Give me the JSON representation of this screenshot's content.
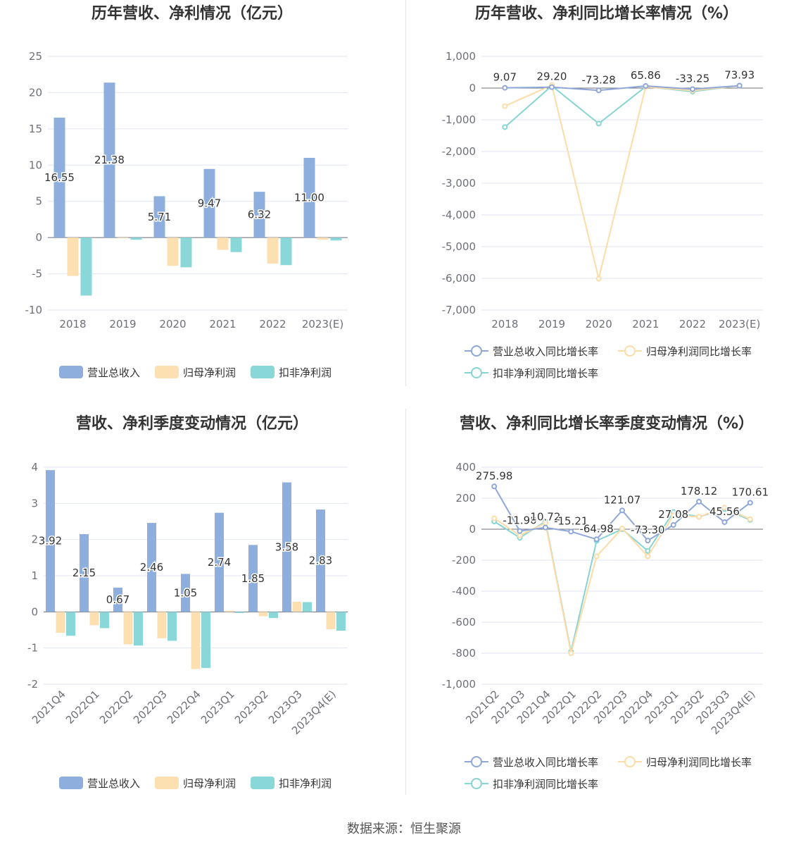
{
  "source": "数据来源：恒生聚源",
  "colors": {
    "revenue": "#8eafdd",
    "net": "#fde0b2",
    "deducted": "#8ad7d8",
    "revenue_line": "#8ea7d8",
    "net_line": "#fddca7",
    "deducted_line": "#85d5d3"
  },
  "legend": {
    "bars": [
      "营业总收入",
      "归母净利润",
      "扣非净利润"
    ],
    "lines": [
      "营业总收入同比增长率",
      "归母净利润同比增长率",
      "扣非净利润同比增长率"
    ]
  },
  "chart_data": [
    {
      "type": "bar",
      "title": "历年营收、净利情况（亿元）",
      "categories": [
        "2018",
        "2019",
        "2020",
        "2021",
        "2022",
        "2023(E)"
      ],
      "series": [
        {
          "name": "营业总收入",
          "values": [
            16.55,
            21.38,
            5.71,
            9.47,
            6.32,
            11.0
          ],
          "labels": [
            "16.55",
            "21.38",
            "5.71",
            "9.47",
            "6.32",
            "11.00"
          ]
        },
        {
          "name": "归母净利润",
          "values": [
            -5.3,
            -0.1,
            -3.9,
            -1.7,
            -3.6,
            -0.3
          ]
        },
        {
          "name": "扣非净利润",
          "values": [
            -8.0,
            -0.3,
            -4.1,
            -2.0,
            -3.8,
            -0.4
          ]
        }
      ],
      "ylim": [
        -10,
        25
      ],
      "yticks": [
        -10,
        -5,
        0,
        5,
        10,
        15,
        20,
        25
      ],
      "ytick_labels": [
        "-10",
        "-5",
        "0",
        "5",
        "10",
        "15",
        "20",
        "25"
      ],
      "grid": true,
      "legend_position": "bottom"
    },
    {
      "type": "line",
      "title": "历年营收、净利同比增长率情况（%）",
      "categories": [
        "2018",
        "2019",
        "2020",
        "2021",
        "2022",
        "2023(E)"
      ],
      "series": [
        {
          "name": "营业总收入同比增长率",
          "values": [
            9.07,
            29.2,
            -73.28,
            65.86,
            -33.25,
            73.93
          ],
          "labels": [
            "9.07",
            "29.20",
            "-73.28",
            "65.86",
            "-33.25",
            "73.93"
          ]
        },
        {
          "name": "归母净利润同比增长率",
          "values": [
            -570,
            95,
            -6010,
            40,
            -80,
            75
          ]
        },
        {
          "name": "扣非净利润同比增长率",
          "values": [
            -1230,
            70,
            -1120,
            45,
            -110,
            80
          ]
        }
      ],
      "ylim": [
        -7000,
        1000
      ],
      "yticks": [
        -7000,
        -6000,
        -5000,
        -4000,
        -3000,
        -2000,
        -1000,
        0,
        1000
      ],
      "ytick_labels": [
        "-7,000",
        "-6,000",
        "-5,000",
        "-4,000",
        "-3,000",
        "-2,000",
        "-1,000",
        "0",
        "1,000"
      ],
      "grid": true,
      "legend_position": "bottom"
    },
    {
      "type": "bar",
      "title": "营收、净利季度变动情况（亿元）",
      "categories": [
        "2021Q4",
        "2022Q1",
        "2022Q2",
        "2022Q3",
        "2022Q4",
        "2023Q1",
        "2023Q2",
        "2023Q3",
        "2023Q4(E)"
      ],
      "series": [
        {
          "name": "营业总收入",
          "values": [
            3.92,
            2.15,
            0.67,
            2.46,
            1.05,
            2.74,
            1.85,
            3.58,
            2.83
          ],
          "labels": [
            "3.92",
            "2.15",
            "0.67",
            "2.46",
            "1.05",
            "2.74",
            "1.85",
            "3.58",
            "2.83"
          ]
        },
        {
          "name": "归母净利润",
          "values": [
            -0.58,
            -0.37,
            -0.9,
            -0.73,
            -1.58,
            0.03,
            -0.12,
            0.28,
            -0.48
          ]
        },
        {
          "name": "扣非净利润",
          "values": [
            -0.66,
            -0.45,
            -0.93,
            -0.8,
            -1.55,
            -0.03,
            -0.17,
            0.27,
            -0.52
          ]
        }
      ],
      "ylim": [
        -2,
        4
      ],
      "yticks": [
        -2,
        -1,
        0,
        1,
        2,
        3,
        4
      ],
      "ytick_labels": [
        "-2",
        "-1",
        "0",
        "1",
        "2",
        "3",
        "4"
      ],
      "grid": true,
      "legend_position": "bottom"
    },
    {
      "type": "line",
      "title": "营收、净利同比增长率季度变动情况（%）",
      "categories": [
        "2021Q2",
        "2021Q3",
        "2021Q4",
        "2022Q1",
        "2022Q2",
        "2022Q3",
        "2022Q4",
        "2023Q1",
        "2023Q2",
        "2023Q3",
        "2023Q4(E)"
      ],
      "series": [
        {
          "name": "营业总收入同比增长率",
          "values": [
            275.98,
            -11.9,
            10.72,
            -15.21,
            -64.98,
            121.07,
            -73.3,
            27.08,
            178.12,
            45.56,
            170.61
          ],
          "labels": [
            "275.98",
            "-11.90",
            "10.72",
            "-15.21",
            "-64.98",
            "121.07",
            "-73.30",
            "27.08",
            "178.12",
            "45.56",
            "170.61"
          ]
        },
        {
          "name": "归母净利润同比增长率",
          "values": [
            70,
            -40,
            40,
            -800,
            -175,
            5,
            -175,
            90,
            80,
            140,
            65
          ]
        },
        {
          "name": "扣非净利润同比增长率",
          "values": [
            50,
            -55,
            50,
            -790,
            -75,
            0,
            -140,
            110,
            80,
            130,
            60
          ]
        }
      ],
      "ylim": [
        -1000,
        400
      ],
      "yticks": [
        -1000,
        -800,
        -600,
        -400,
        -200,
        0,
        200,
        400
      ],
      "ytick_labels": [
        "-1,000",
        "-800",
        "-600",
        "-400",
        "-200",
        "0",
        "200",
        "400"
      ],
      "grid": true,
      "legend_position": "bottom"
    }
  ]
}
